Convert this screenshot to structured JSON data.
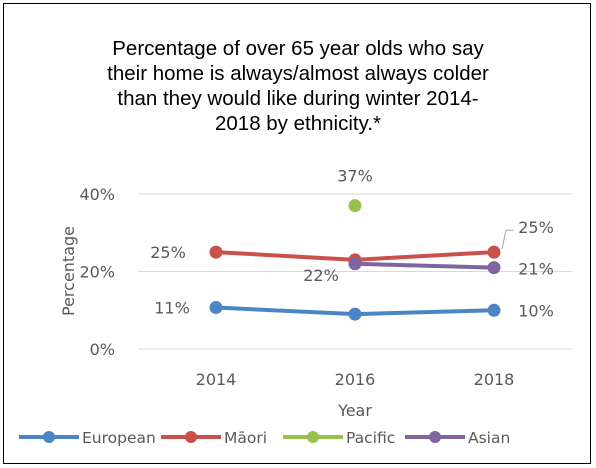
{
  "chart_data": {
    "type": "line",
    "title": "Percentage of over 65 year olds who say their home is always/almost always colder than they would like during winter 2014-2018 by ethnicity.*",
    "title_lines": [
      "Percentage of over 65 year olds who say",
      "their home is always/almost always colder",
      "than they would like during winter 2014-",
      "2018 by ethnicity.*"
    ],
    "xlabel": "Year",
    "ylabel": "Percentage",
    "x": [
      2014,
      2016,
      2018
    ],
    "x_tick_labels": [
      "2014",
      "2016",
      "2018"
    ],
    "ylim": [
      0,
      0.4
    ],
    "y_ticks": [
      0,
      0.2,
      0.4
    ],
    "y_tick_labels": [
      "0%",
      "20%",
      "40%"
    ],
    "grid": true,
    "legend_position": "bottom",
    "series": [
      {
        "name": "European",
        "color": "#4a86c5",
        "values": [
          0.107,
          0.09,
          0.1
        ],
        "labels": [
          "11%",
          null,
          "10%"
        ]
      },
      {
        "name": "Māori",
        "color": "#c9504b",
        "values": [
          0.25,
          0.23,
          0.25
        ],
        "labels": [
          "25%",
          null,
          "25%"
        ]
      },
      {
        "name": "Pacific",
        "color": "#97c14f",
        "values": [
          null,
          0.37,
          null
        ],
        "labels": [
          null,
          "37%",
          null
        ]
      },
      {
        "name": "Asian",
        "color": "#8064a2",
        "values": [
          null,
          0.22,
          0.21
        ],
        "labels": [
          null,
          "22%",
          "21%"
        ]
      }
    ]
  }
}
